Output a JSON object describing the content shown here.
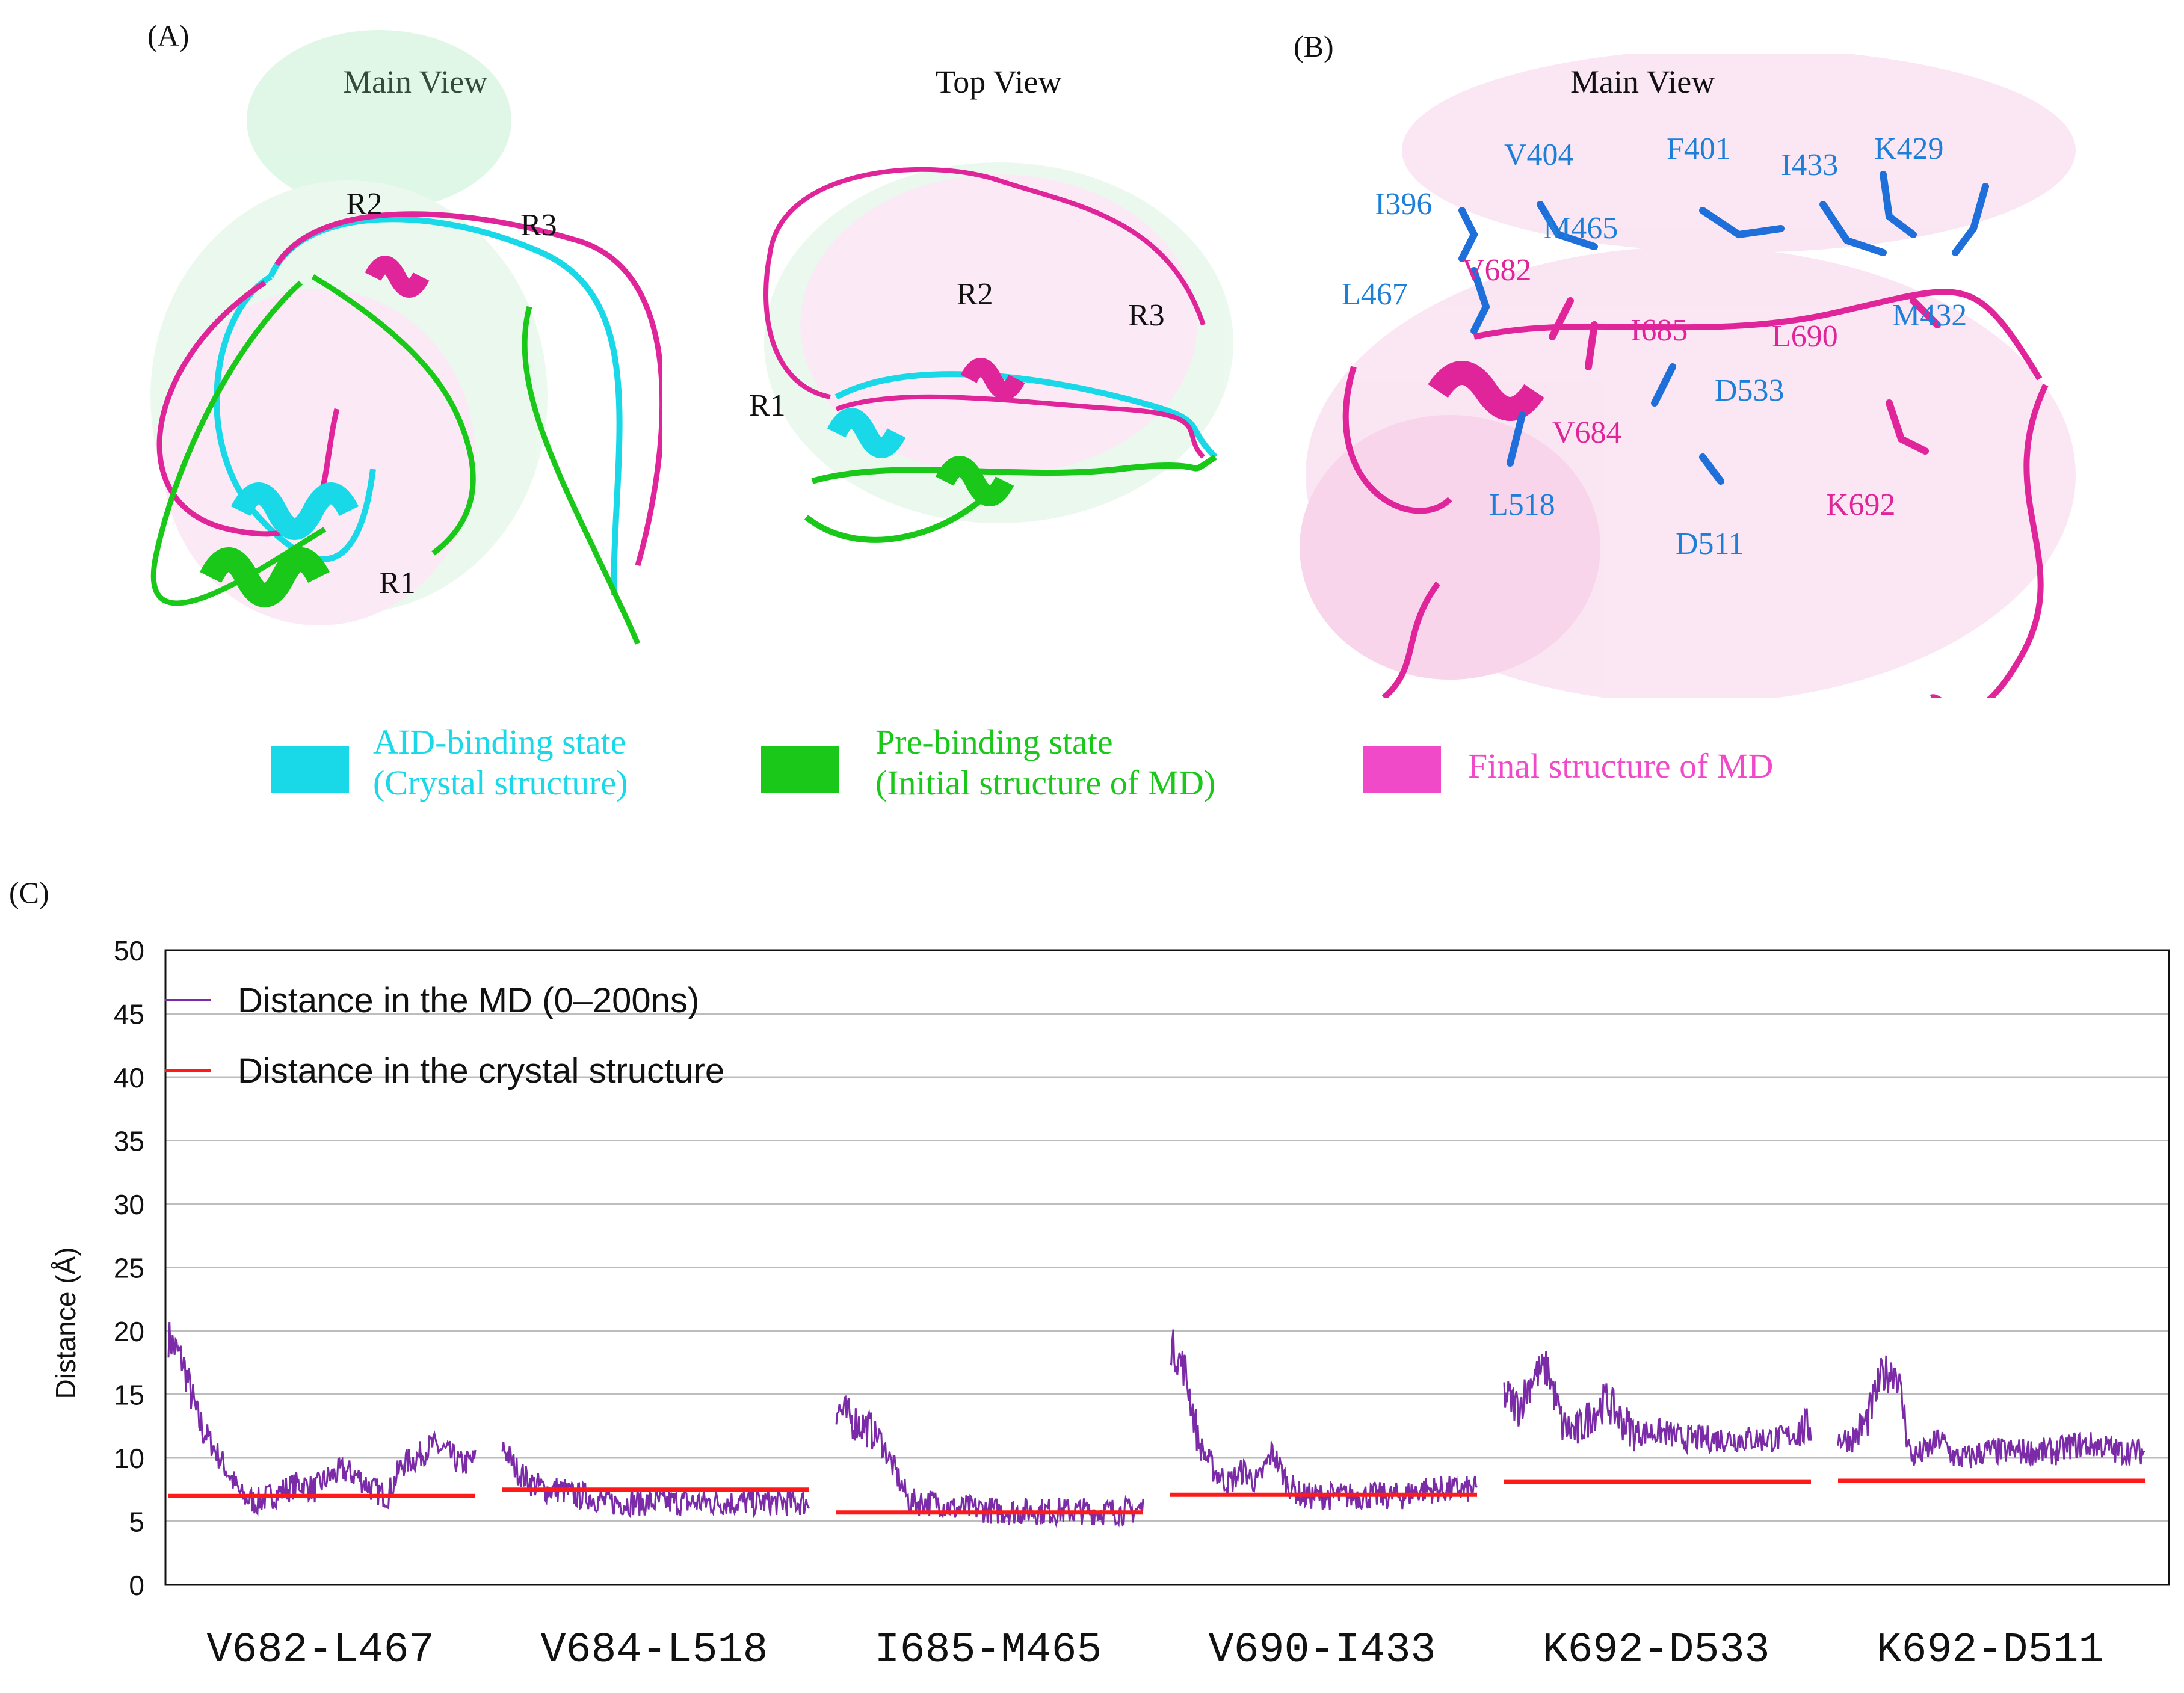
{
  "panels": {
    "a": {
      "label": "(A)",
      "main_view": "Main View",
      "top_view": "Top View",
      "regions_main": [
        "R2",
        "R3",
        "R1"
      ],
      "regions_top": [
        "R2",
        "R3",
        "R1"
      ]
    },
    "b": {
      "label": "(B)",
      "main_view": "Main View",
      "blue_residues": [
        "V404",
        "F401",
        "I433",
        "K429",
        "I396",
        "M465",
        "L467",
        "M432",
        "D533",
        "L518",
        "D511"
      ],
      "magenta_residues": [
        "V682",
        "I685",
        "L690",
        "V684",
        "K692"
      ]
    },
    "c": {
      "label": "(C)"
    }
  },
  "structure_legend": [
    {
      "line1": "AID-binding state",
      "line2": "(Crystal structure)",
      "color": "#19d8e8"
    },
    {
      "line1": "Pre-binding state",
      "line2": "(Initial structure of MD)",
      "color": "#19c819"
    },
    {
      "line1": "Final structure of MD",
      "line2": "",
      "color": "#f04ac8"
    }
  ],
  "colors": {
    "md": "#7b2aa8",
    "crystal": "#ff1a1a",
    "cyan": "#19d8e8",
    "green": "#19c819",
    "magenta": "#e0249a",
    "blue": "#1e7fd9"
  },
  "chart_data": {
    "type": "line",
    "ylabel": "Distance (Å)",
    "ylim": [
      0,
      50
    ],
    "yticks": [
      0,
      5,
      10,
      15,
      20,
      25,
      30,
      35,
      40,
      45,
      50
    ],
    "grid": true,
    "legend_position": "top-left",
    "categories": [
      "V682-L467",
      "V684-L518",
      "I685-M465",
      "V690-I433",
      "K692-D533",
      "K692-D511"
    ],
    "series": [
      {
        "name": "Distance in the MD (0–200ns)",
        "color": "#7b2aa8",
        "segments": [
          [
            19.5,
            17.5,
            13,
            11,
            9,
            7,
            6.5,
            7,
            7.5,
            8,
            7.5,
            8.5,
            9,
            8.5,
            7.5,
            7,
            9.5,
            10,
            11,
            10.5,
            9.5,
            9.8
          ],
          [
            11,
            9,
            8,
            7.5,
            7.5,
            7,
            7,
            6.5,
            6.5,
            6.5,
            6.5,
            6.5,
            6.5,
            6.5,
            6.5,
            6.5,
            6.5,
            6.5,
            6.5,
            6.5,
            6.5,
            6.5
          ],
          [
            14,
            13,
            12.5,
            11.5,
            9,
            6.5,
            6.5,
            6.5,
            6,
            6,
            6,
            5.8,
            5.8,
            5.8,
            5.8,
            5.8,
            5.8,
            5.8,
            5.8,
            5.8,
            5.8,
            6
          ],
          [
            19,
            17,
            11,
            9,
            8,
            9,
            8,
            10.5,
            8,
            7,
            7,
            7,
            7,
            7,
            7,
            7,
            7,
            7.5,
            7.5,
            7.5,
            7.5,
            7.5
          ],
          [
            15,
            14,
            16.5,
            17,
            12.5,
            12,
            13.5,
            14.5,
            13,
            12,
            12,
            12,
            11.5,
            11.5,
            11.5,
            11.5,
            11.5,
            11.5,
            11.5,
            11.5,
            12,
            12.5
          ],
          [
            11.5,
            11.5,
            13,
            16.5,
            17,
            10,
            10.5,
            11.5,
            10,
            10,
            10.5,
            10.5,
            10.5,
            10.5,
            10.5,
            10.5,
            11,
            11,
            11,
            10.5,
            10.5,
            10.5
          ]
        ]
      },
      {
        "name": "Distance in the crystal structure",
        "color": "#ff1a1a",
        "values": [
          7.0,
          7.5,
          5.7,
          7.1,
          8.1,
          8.2
        ]
      }
    ]
  }
}
